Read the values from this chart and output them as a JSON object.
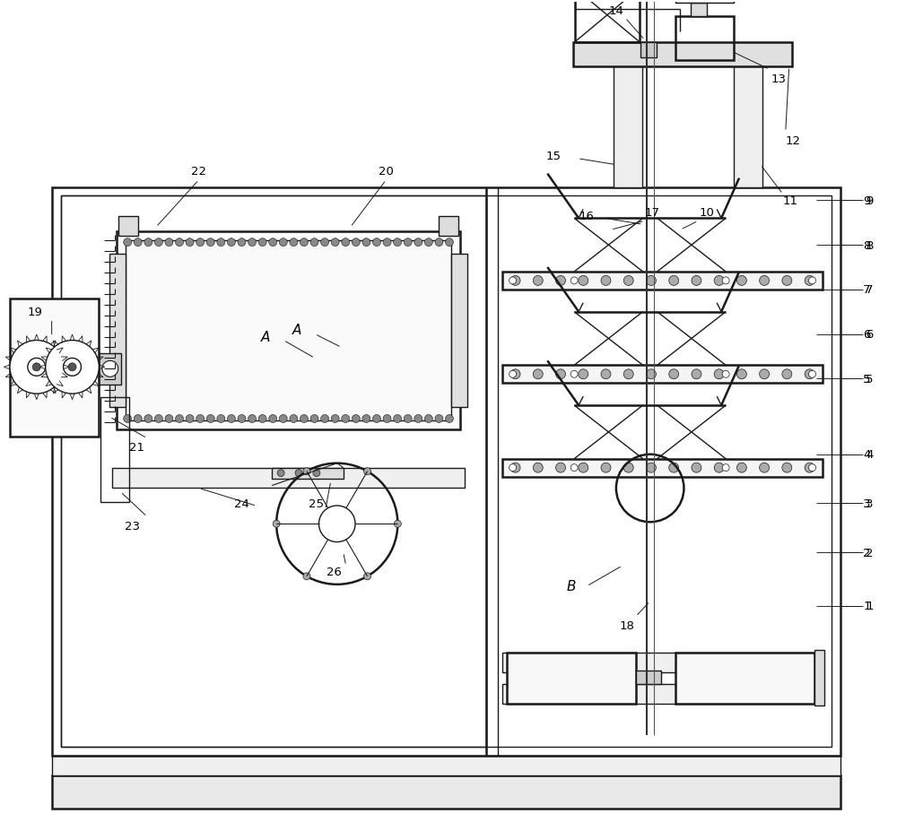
{
  "bg_color": "#ffffff",
  "lc": "#1a1a1a",
  "lw": 1.0,
  "lw2": 1.8,
  "fig_w": 10.0,
  "fig_h": 9.28,
  "xlim": [
    0,
    10
  ],
  "ylim": [
    0,
    9.28
  ]
}
